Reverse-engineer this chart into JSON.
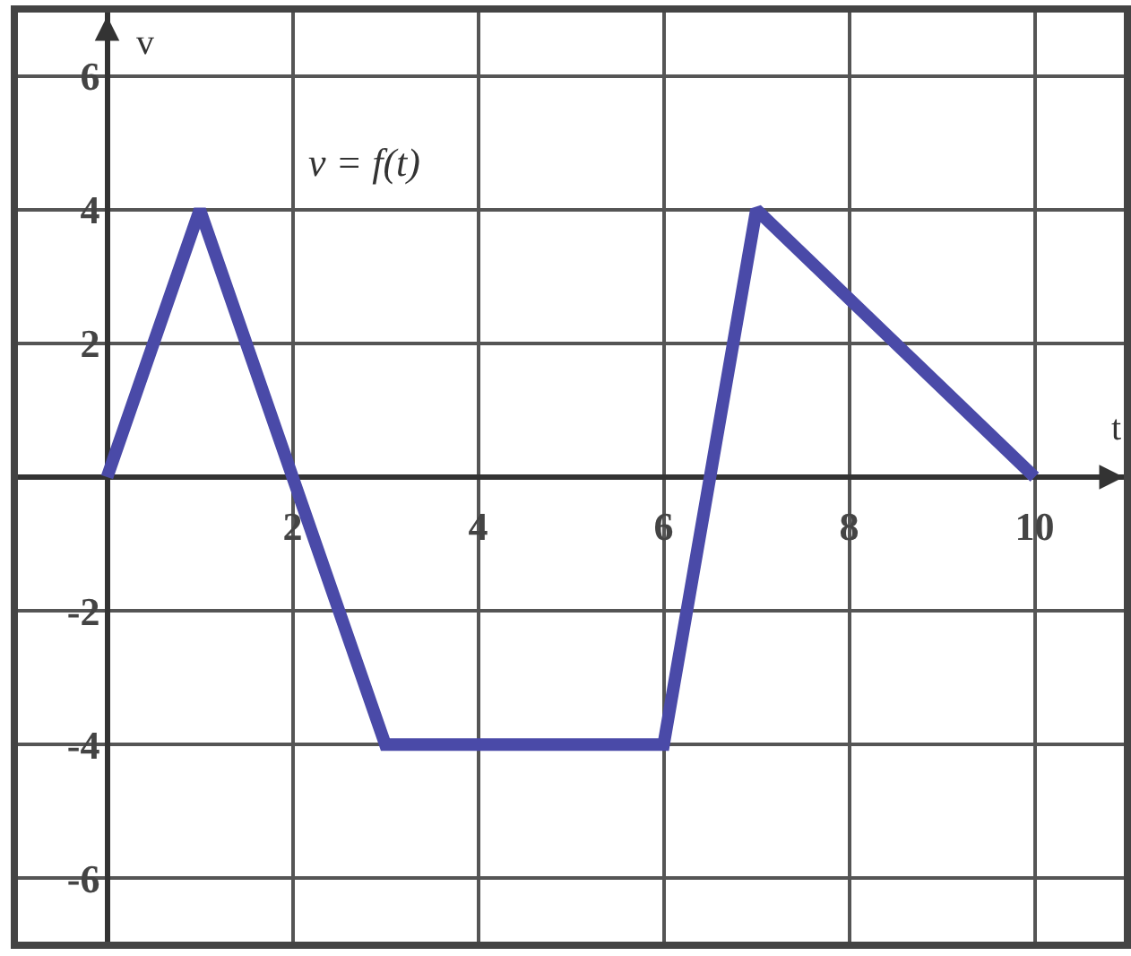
{
  "chart_data": {
    "type": "line",
    "xlabel": "t",
    "ylabel": "v",
    "x": [
      0,
      1,
      3,
      6,
      7,
      10
    ],
    "series": [
      {
        "name": "v = f(t)",
        "color": "#4a4aa8",
        "values": [
          0,
          4,
          -4,
          -4,
          4,
          0
        ]
      }
    ],
    "xlim": [
      -1,
      11
    ],
    "ylim": [
      -7,
      7
    ],
    "xticks": [
      2,
      4,
      6,
      8,
      10
    ],
    "yticks": [
      -6,
      -4,
      -2,
      2,
      4,
      6
    ],
    "grid": true,
    "legend": false,
    "marker": "none",
    "line_style": "solid"
  }
}
